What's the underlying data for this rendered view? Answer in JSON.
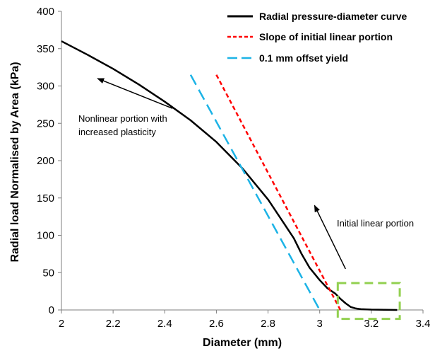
{
  "chart_data": {
    "type": "line",
    "xlabel": "Diameter (mm)",
    "ylabel": "Radial load Normalised by Area  (kPa)",
    "xlim": [
      2,
      3.4
    ],
    "ylim": [
      0,
      400
    ],
    "xticks": [
      "2",
      "2.2",
      "2.4",
      "2.6",
      "2.8",
      "3",
      "3.2",
      "3.4"
    ],
    "yticks": [
      "0",
      "50",
      "100",
      "150",
      "200",
      "250",
      "300",
      "350",
      "400"
    ],
    "grid": false,
    "legend_position": "top-right",
    "series": [
      {
        "name": "Radial pressure-diameter curve",
        "color": "#000000",
        "style": "solid",
        "x": [
          2.0,
          2.1,
          2.2,
          2.3,
          2.4,
          2.5,
          2.6,
          2.7,
          2.8,
          2.85,
          2.9,
          2.93,
          2.96,
          3.0,
          3.03,
          3.06,
          3.08,
          3.1,
          3.12,
          3.14,
          3.16,
          3.2,
          3.25,
          3.3
        ],
        "y": [
          360,
          342,
          323,
          302,
          279,
          254,
          225,
          190,
          148,
          122,
          96,
          75,
          57,
          40,
          29,
          22,
          15,
          9,
          4,
          2,
          1,
          0.5,
          0.2,
          0
        ]
      },
      {
        "name": "Slope of initial linear portion",
        "color": "#ff0000",
        "style": "short-dash",
        "x": [
          2.6,
          3.08
        ],
        "y": [
          315,
          0
        ]
      },
      {
        "name": "0.1 mm offset yield",
        "color": "#1cb3e6",
        "style": "long-dash",
        "x": [
          2.5,
          3.0
        ],
        "y": [
          315,
          0
        ]
      }
    ],
    "annotations": [
      {
        "lines": [
          "Nonlinear portion with",
          "increased plasticity"
        ],
        "arrow_from": [
          2.43,
          270
        ],
        "arrow_to": [
          2.14,
          310
        ]
      },
      {
        "lines": [
          "Initial linear portion"
        ],
        "arrow_from": [
          3.1,
          55
        ],
        "arrow_to": [
          2.98,
          140
        ]
      }
    ],
    "highlight_box": {
      "x": [
        3.07,
        3.31
      ],
      "y": [
        -12,
        36
      ],
      "color": "#92d050"
    }
  }
}
